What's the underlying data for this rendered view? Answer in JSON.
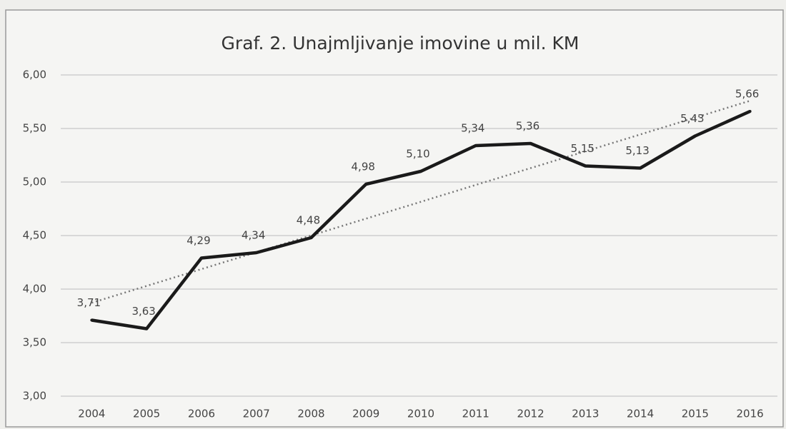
{
  "chart_data": {
    "type": "line",
    "title": "Graf. 2. Unajmljivanje imovine u mil. KM",
    "categories": [
      "2004",
      "2005",
      "2006",
      "2007",
      "2008",
      "2009",
      "2010",
      "2011",
      "2012",
      "2013",
      "2014",
      "2015",
      "2016"
    ],
    "series": [
      {
        "color": "#1a1a1a",
        "values": [
          3.71,
          3.63,
          4.29,
          4.34,
          4.48,
          4.98,
          5.1,
          5.34,
          5.36,
          5.15,
          5.13,
          5.43,
          5.66
        ],
        "value_labels": [
          "3,71",
          "3,63",
          "4,29",
          "4,34",
          "4,48",
          "4,98",
          "5,10",
          "5,34",
          "5,36",
          "5,15",
          "5,13",
          "5,43",
          "5,66"
        ]
      }
    ],
    "trendline": "linear",
    "ylim": [
      3,
      6
    ],
    "yticks": [
      {
        "value": 3,
        "label": "3,00"
      },
      {
        "value": 3.5,
        "label": "3,50"
      },
      {
        "value": 4,
        "label": "4,00"
      },
      {
        "value": 4.5,
        "label": "4,50"
      },
      {
        "value": 5,
        "label": "5,00"
      },
      {
        "value": 5.5,
        "label": "5,50"
      },
      {
        "value": 6,
        "label": "6,00"
      }
    ],
    "grid": true
  }
}
